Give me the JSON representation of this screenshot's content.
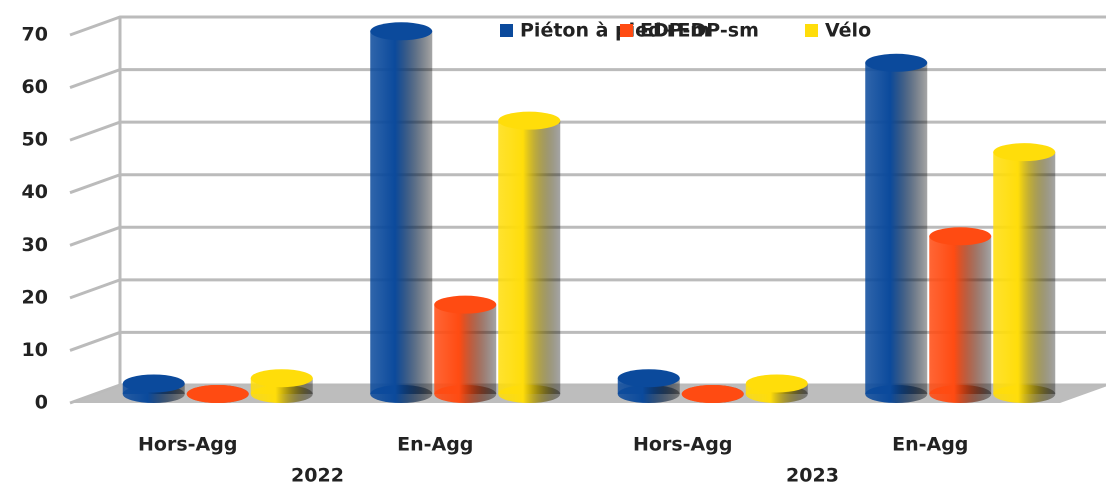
{
  "chart_data": {
    "type": "bar3d",
    "categories": [
      "Hors-Agg",
      "En-Agg",
      "Hors-Agg",
      "En-Agg"
    ],
    "group_labels": [
      "2022",
      "2023"
    ],
    "series": [
      {
        "name": "Piéton à pied+EDP-sm",
        "color": "#0b4a9c",
        "values": [
          2,
          69,
          3,
          63
        ]
      },
      {
        "name": "EDP-m",
        "color": "#ff4b12",
        "values": [
          0,
          17,
          0,
          30
        ]
      },
      {
        "name": "Vélo",
        "color": "#ffdd0a",
        "values": [
          3,
          52,
          2,
          46
        ]
      }
    ],
    "ylim": [
      0,
      70
    ],
    "yticks": [
      0,
      10,
      20,
      30,
      40,
      50,
      60,
      70
    ],
    "grid": true,
    "legend": "top-right"
  }
}
